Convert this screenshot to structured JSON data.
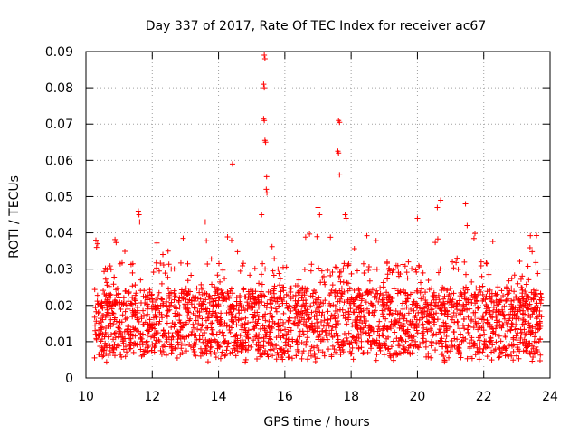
{
  "chart_data": {
    "type": "scatter",
    "title": "Day 337 of 2017, Rate Of TEC Index for receiver ac67",
    "xlabel": "GPS time / hours",
    "ylabel": "ROTI / TECUs",
    "xlim": [
      10,
      24
    ],
    "ylim": [
      0,
      0.09
    ],
    "grid": true,
    "legend": "none",
    "marker": "+",
    "color": "#ff0000",
    "x_ticks": [
      {
        "value": 10,
        "label": "10"
      },
      {
        "value": 12,
        "label": "12"
      },
      {
        "value": 14,
        "label": "14"
      },
      {
        "value": 16,
        "label": "16"
      },
      {
        "value": 18,
        "label": "18"
      },
      {
        "value": 20,
        "label": "20"
      },
      {
        "value": 22,
        "label": "22"
      },
      {
        "value": 24,
        "label": "24"
      }
    ],
    "y_ticks": [
      {
        "value": 0,
        "label": "0"
      },
      {
        "value": 0.01,
        "label": "0.01"
      },
      {
        "value": 0.02,
        "label": "0.02"
      },
      {
        "value": 0.03,
        "label": "0.03"
      },
      {
        "value": 0.04,
        "label": "0.04"
      },
      {
        "value": 0.05,
        "label": "0.05"
      },
      {
        "value": 0.06,
        "label": "0.06"
      },
      {
        "value": 0.07,
        "label": "0.07"
      },
      {
        "value": 0.08,
        "label": "0.08"
      },
      {
        "value": 0.09,
        "label": "0.09"
      }
    ],
    "dense_band": {
      "x_range": [
        10.25,
        23.75
      ],
      "y_min": 0.004,
      "y_median": 0.014,
      "y_typical_max": 0.03,
      "n_points": 2400
    },
    "notable_points": [
      {
        "x": 10.3,
        "y": 0.038
      },
      {
        "x": 10.35,
        "y": 0.037
      },
      {
        "x": 10.32,
        "y": 0.036
      },
      {
        "x": 11.58,
        "y": 0.046
      },
      {
        "x": 11.6,
        "y": 0.045
      },
      {
        "x": 11.62,
        "y": 0.043
      },
      {
        "x": 13.6,
        "y": 0.043
      },
      {
        "x": 14.42,
        "y": 0.059
      },
      {
        "x": 15.3,
        "y": 0.045
      },
      {
        "x": 15.38,
        "y": 0.089
      },
      {
        "x": 15.4,
        "y": 0.088
      },
      {
        "x": 15.36,
        "y": 0.081
      },
      {
        "x": 15.38,
        "y": 0.08
      },
      {
        "x": 15.36,
        "y": 0.0715
      },
      {
        "x": 15.38,
        "y": 0.071
      },
      {
        "x": 15.4,
        "y": 0.0655
      },
      {
        "x": 15.42,
        "y": 0.065
      },
      {
        "x": 15.45,
        "y": 0.0555
      },
      {
        "x": 15.44,
        "y": 0.052
      },
      {
        "x": 15.46,
        "y": 0.051
      },
      {
        "x": 17.0,
        "y": 0.047
      },
      {
        "x": 17.05,
        "y": 0.045
      },
      {
        "x": 17.62,
        "y": 0.071
      },
      {
        "x": 17.65,
        "y": 0.0705
      },
      {
        "x": 17.6,
        "y": 0.0625
      },
      {
        "x": 17.62,
        "y": 0.062
      },
      {
        "x": 17.65,
        "y": 0.056
      },
      {
        "x": 17.82,
        "y": 0.045
      },
      {
        "x": 17.85,
        "y": 0.044
      },
      {
        "x": 20.0,
        "y": 0.044
      },
      {
        "x": 20.6,
        "y": 0.047
      },
      {
        "x": 20.7,
        "y": 0.049
      },
      {
        "x": 21.45,
        "y": 0.048
      },
      {
        "x": 21.5,
        "y": 0.042
      }
    ]
  }
}
